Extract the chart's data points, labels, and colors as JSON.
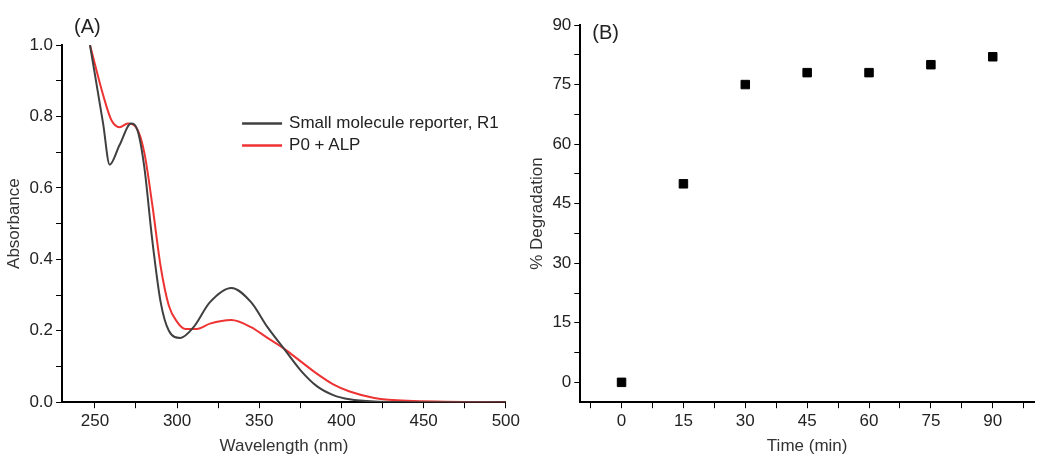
{
  "chart_data": [
    {
      "type": "line",
      "title": "(A)",
      "xlabel": "Wavelength (nm)",
      "ylabel": "Absorbance",
      "xlim": [
        230,
        500
      ],
      "ylim": [
        0,
        1.0
      ],
      "xticks": [
        250,
        {
          "value": 275,
          "label": null
        },
        300,
        {
          "value": 325,
          "label": null
        },
        350,
        {
          "value": 375,
          "label": null
        },
        400,
        {
          "value": 425,
          "label": null
        },
        450,
        {
          "value": 475,
          "label": null
        },
        500
      ],
      "yticks": [
        {
          "value": 0,
          "label": "0.0"
        },
        {
          "value": 0.1,
          "label": null
        },
        0.2,
        {
          "value": 0.3,
          "label": null
        },
        0.4,
        {
          "value": 0.5,
          "label": null
        },
        0.6,
        {
          "value": 0.7,
          "label": null
        },
        0.8,
        {
          "value": 0.9,
          "label": null
        },
        {
          "value": 1.0,
          "label": "1.0"
        }
      ],
      "grid": false,
      "legend": "top right",
      "marker": "none",
      "line_style": "solid",
      "series": [
        {
          "name": "Small molecule reporter, R1",
          "color": "#404040",
          "x": [
            247,
            255,
            259,
            265,
            272,
            276,
            280,
            285,
            290,
            295,
            302,
            310,
            320,
            333,
            345,
            355,
            365,
            375,
            385,
            395,
            405,
            420,
            450,
            500
          ],
          "values": [
            1.0,
            0.78,
            0.665,
            0.72,
            0.78,
            0.76,
            0.66,
            0.45,
            0.28,
            0.2,
            0.18,
            0.21,
            0.28,
            0.32,
            0.28,
            0.21,
            0.15,
            0.09,
            0.045,
            0.02,
            0.008,
            0.002,
            0,
            0
          ]
        },
        {
          "name": "P0 + ALP",
          "color": "#ee3333",
          "x": [
            247,
            255,
            260,
            265,
            270,
            275,
            280,
            285,
            290,
            295,
            300,
            305,
            312,
            320,
            333,
            345,
            355,
            365,
            375,
            385,
            395,
            405,
            420,
            440,
            500
          ],
          "values": [
            1.0,
            0.86,
            0.79,
            0.77,
            0.78,
            0.77,
            0.7,
            0.55,
            0.38,
            0.27,
            0.225,
            0.205,
            0.205,
            0.22,
            0.23,
            0.21,
            0.18,
            0.15,
            0.115,
            0.08,
            0.05,
            0.03,
            0.012,
            0.004,
            0
          ]
        }
      ]
    },
    {
      "type": "scatter",
      "title": "(B)",
      "xlabel": "Time (min)",
      "ylabel": "% Degradation",
      "xlim": [
        -10,
        100
      ],
      "ylim": [
        -5,
        90
      ],
      "xticks": [
        {
          "value": -7.5,
          "label": null
        },
        0,
        {
          "value": 7.5,
          "label": null
        },
        15,
        {
          "value": 22.5,
          "label": null
        },
        30,
        {
          "value": 37.5,
          "label": null
        },
        45,
        {
          "value": 52.5,
          "label": null
        },
        60,
        {
          "value": 67.5,
          "label": null
        },
        75,
        {
          "value": 82.5,
          "label": null
        },
        90,
        {
          "value": 97.5,
          "label": null
        }
      ],
      "yticks": [
        0,
        {
          "value": 7.5,
          "label": null
        },
        15,
        {
          "value": 22.5,
          "label": null
        },
        30,
        {
          "value": 37.5,
          "label": null
        },
        45,
        {
          "value": 52.5,
          "label": null
        },
        60,
        {
          "value": 67.5,
          "label": null
        },
        75,
        {
          "value": 82.5,
          "label": null
        },
        90
      ],
      "grid": false,
      "legend": false,
      "marker": "square",
      "series": [
        {
          "color": "#000000",
          "x": [
            0,
            15,
            30,
            45,
            60,
            75,
            90
          ],
          "values": [
            0,
            50,
            75,
            78,
            78,
            80,
            82
          ]
        }
      ]
    }
  ]
}
